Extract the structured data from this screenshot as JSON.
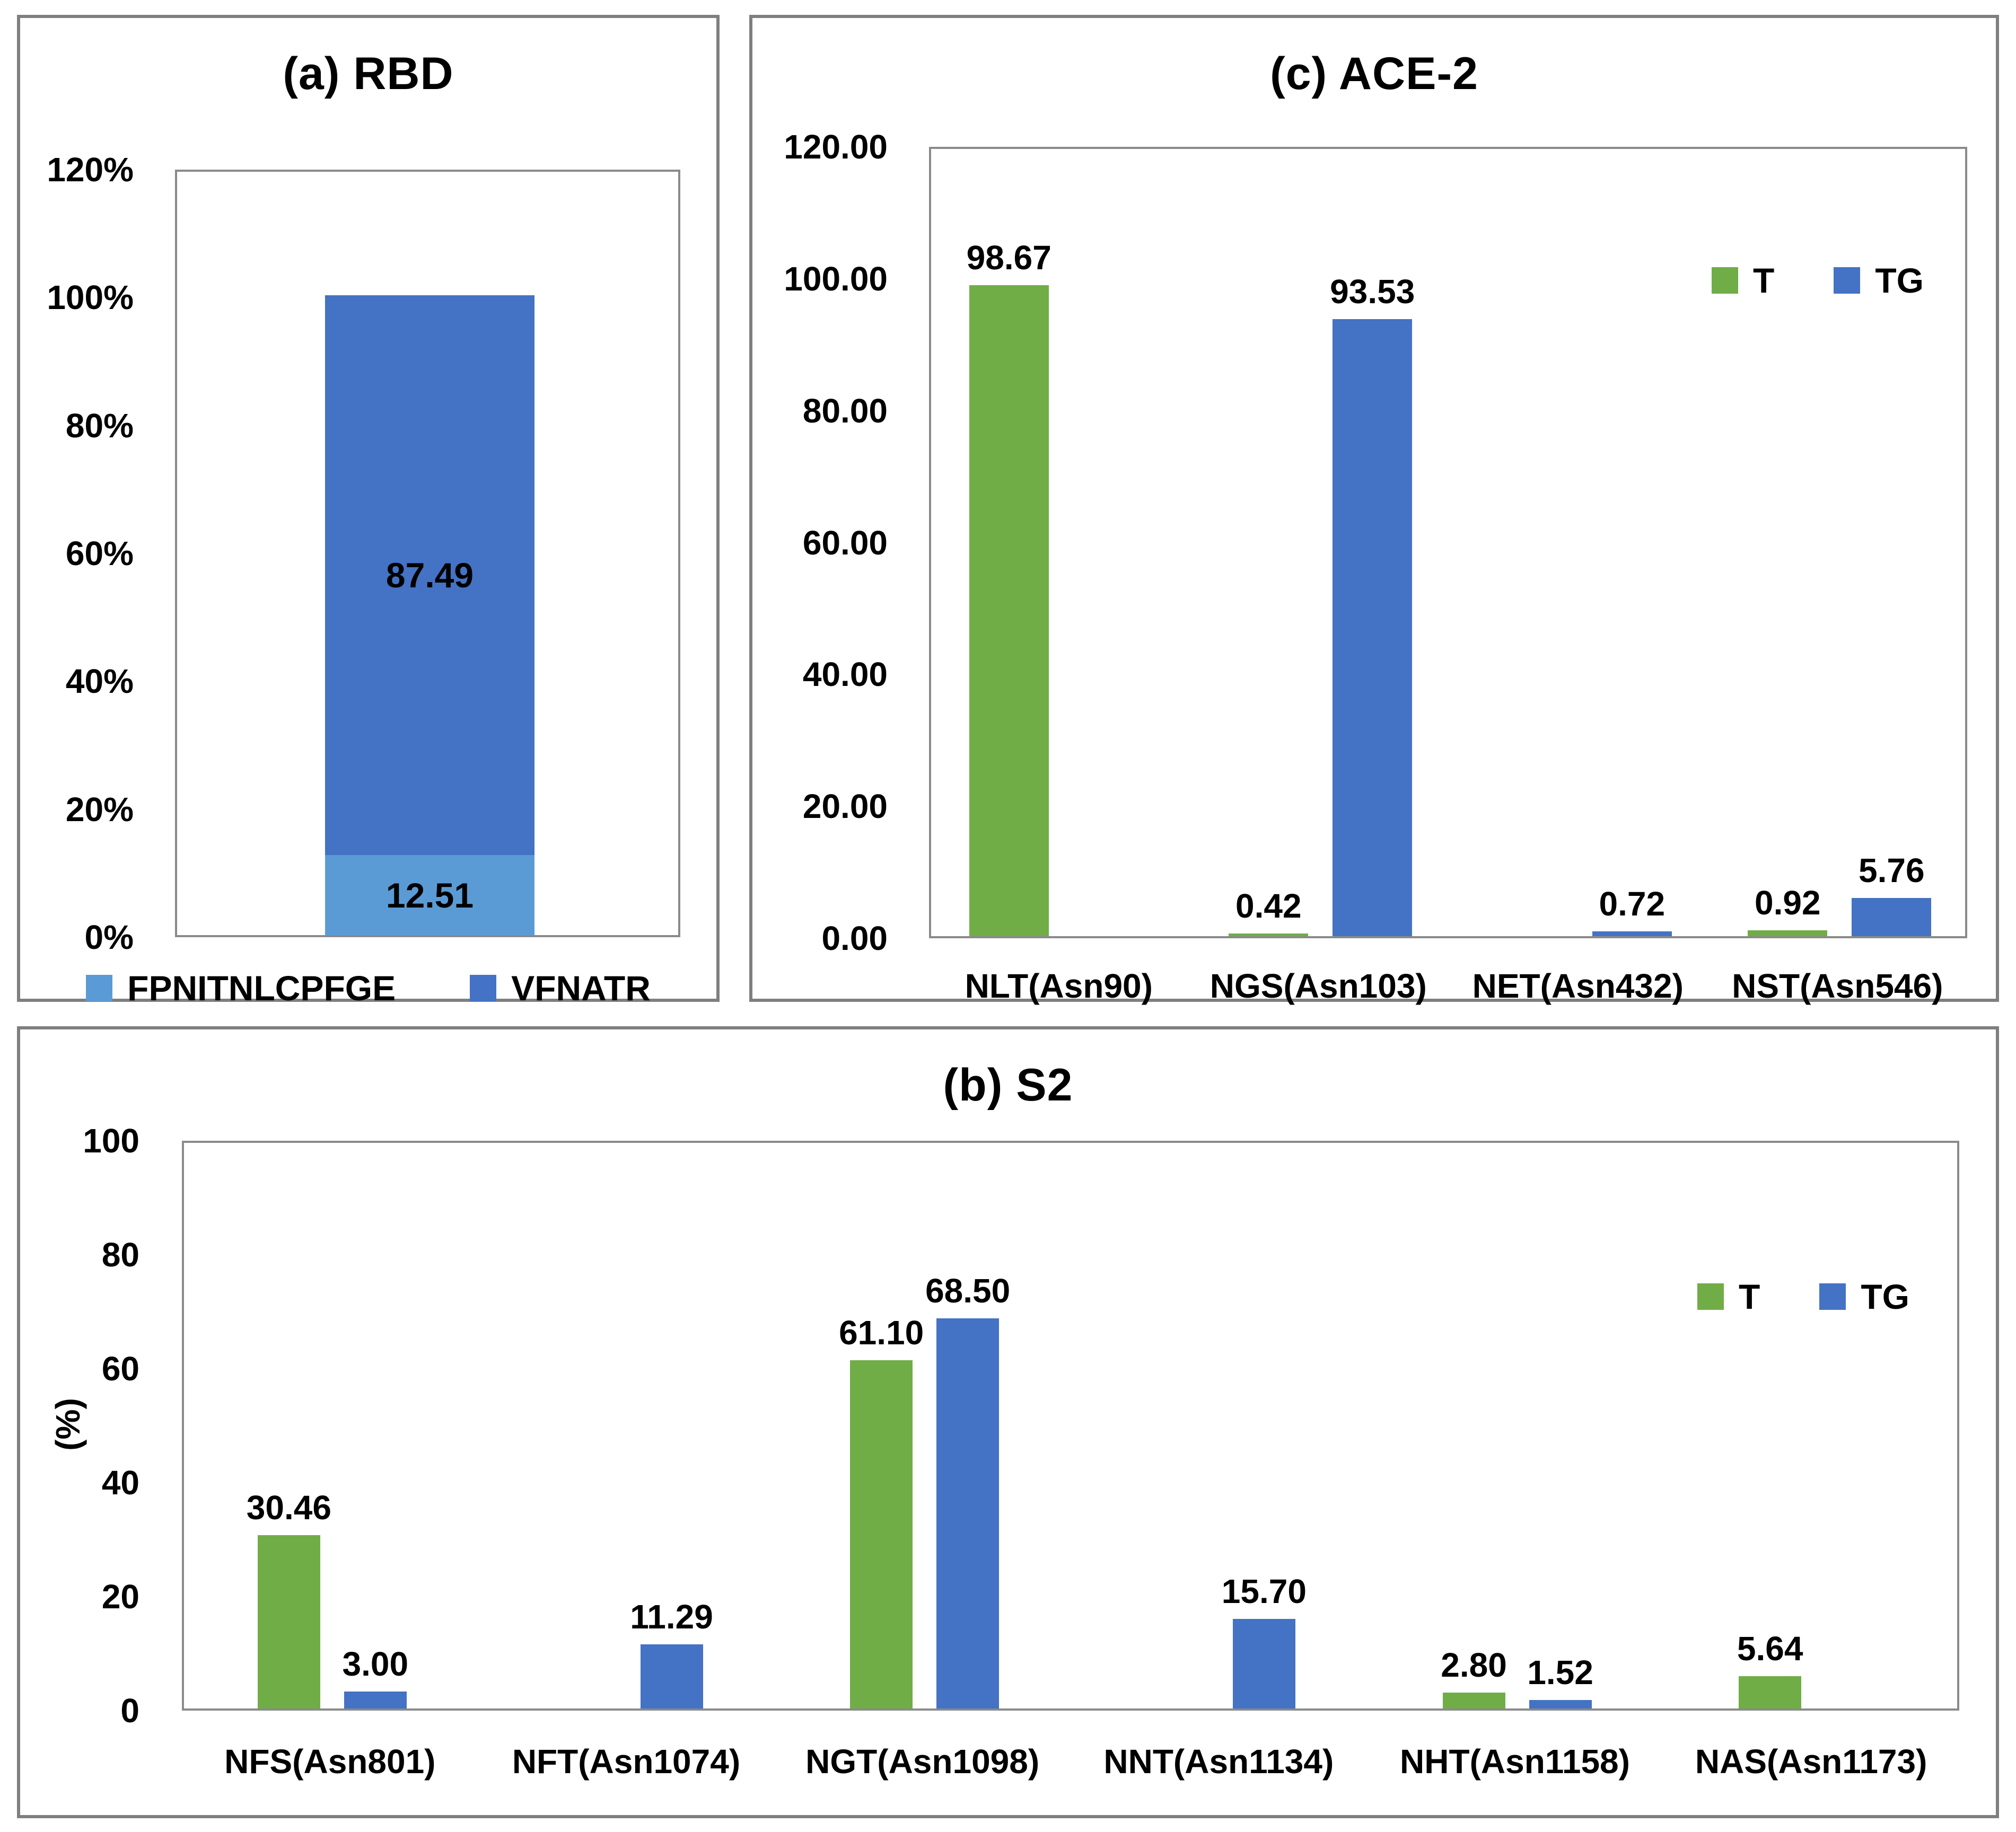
{
  "figure": {
    "panels": [
      {
        "id": "a",
        "title": "(a) RBD"
      },
      {
        "id": "c",
        "title": "(c) ACE-2"
      },
      {
        "id": "b",
        "title": "(b) S2"
      }
    ]
  },
  "colors": {
    "t_green": "#70AD47",
    "tg_blue": "#4472C4",
    "light_blue": "#5B9BD5",
    "panel_border_gray": "#7F7F7F",
    "plot_border_gray": "#8A8A8A",
    "text": "#000000"
  },
  "chart_data": [
    {
      "id": "rbd",
      "type": "bar",
      "subtype": "stacked",
      "title": "(a) RBD",
      "categories": [
        ""
      ],
      "series": [
        {
          "name": "FPNITNLCPFGE",
          "color": "#5B9BD5",
          "values": [
            12.51
          ]
        },
        {
          "name": "VFNATR",
          "color": "#4472C4",
          "values": [
            87.49
          ]
        }
      ],
      "ylim": [
        0,
        120
      ],
      "ytick_step": 20,
      "ytick_labels": [
        "120%",
        "100%",
        "80%",
        "60%",
        "40%",
        "20%",
        "0%"
      ],
      "legend_position": "bottom",
      "grid": false,
      "data_labels": "inside-center"
    },
    {
      "id": "ace2",
      "type": "bar",
      "subtype": "grouped",
      "title": "(c) ACE-2",
      "categories": [
        "NLT(Asn90)",
        "NGS(Asn103)",
        "NET(Asn432)",
        "NST(Asn546)"
      ],
      "series": [
        {
          "name": "T",
          "color": "#70AD47",
          "values": [
            98.67,
            0.42,
            null,
            0.92
          ]
        },
        {
          "name": "TG",
          "color": "#4472C4",
          "values": [
            null,
            93.53,
            0.72,
            5.76
          ]
        }
      ],
      "ylim": [
        0,
        120
      ],
      "ytick_step": 20,
      "ytick_labels": [
        "120.00",
        "100.00",
        "80.00",
        "60.00",
        "40.00",
        "20.00",
        "0.00"
      ],
      "legend_position": "top-right",
      "grid": false,
      "data_labels": "above"
    },
    {
      "id": "s2",
      "type": "bar",
      "subtype": "grouped",
      "title": "(b) S2",
      "ylabel": "(%)",
      "categories": [
        "NFS(Asn801)",
        "NFT(Asn1074)",
        "NGT(Asn1098)",
        "NNT(Asn1134)",
        "NHT(Asn1158)",
        "NAS(Asn1173)"
      ],
      "series": [
        {
          "name": "T",
          "color": "#70AD47",
          "values": [
            30.46,
            null,
            61.1,
            null,
            2.8,
            5.64
          ]
        },
        {
          "name": "TG",
          "color": "#4472C4",
          "values": [
            3.0,
            11.29,
            68.5,
            15.7,
            1.52,
            null
          ]
        }
      ],
      "ylim": [
        0,
        100
      ],
      "ytick_step": 20,
      "ytick_labels": [
        "100",
        "80",
        "60",
        "40",
        "20",
        "0"
      ],
      "legend_position": "top-right",
      "grid": false,
      "data_labels": "above"
    }
  ]
}
